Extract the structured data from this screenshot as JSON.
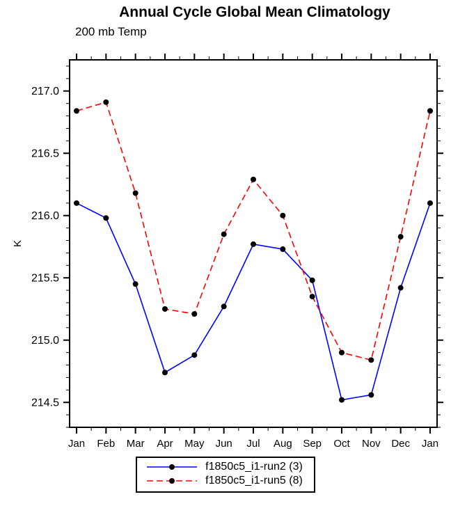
{
  "title": "Annual Cycle Global Mean Climatology",
  "subtitle": "200 mb Temp",
  "chart_data": {
    "type": "line",
    "categories": [
      "Jan",
      "Feb",
      "Mar",
      "Apr",
      "May",
      "Jun",
      "Jul",
      "Aug",
      "Sep",
      "Oct",
      "Nov",
      "Dec",
      "Jan"
    ],
    "xlabel": "",
    "ylabel": "K",
    "ylim": [
      214.3,
      217.25
    ],
    "yticks": [
      214.5,
      215.0,
      215.5,
      216.0,
      216.5,
      217.0
    ],
    "minor_y_step": 0.1,
    "grid": false,
    "legend_position": "bottom",
    "marker": {
      "shape": "circle",
      "color": "#000000"
    },
    "series": [
      {
        "name": "f1850c5_i1-run2 (3)",
        "color": "#0000ff",
        "line_style": "solid",
        "values": [
          216.1,
          215.98,
          215.45,
          214.74,
          214.88,
          215.27,
          215.77,
          215.73,
          215.48,
          214.52,
          214.56,
          215.42,
          216.1
        ]
      },
      {
        "name": "f1850c5_i1-run5 (8)",
        "color": "#ff0000",
        "line_style": "dashed",
        "values": [
          216.84,
          216.91,
          216.18,
          215.25,
          215.21,
          215.85,
          216.29,
          216.0,
          215.35,
          214.9,
          214.84,
          215.83,
          216.84
        ]
      }
    ]
  }
}
